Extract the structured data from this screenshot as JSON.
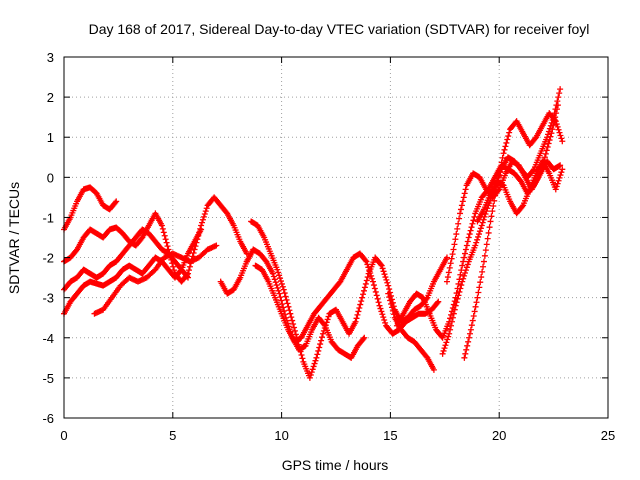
{
  "chart_data": {
    "type": "scatter",
    "title": "Day 168 of 2017, Sidereal Day-to-day VTEC variation (SDTVAR) for receiver foyl",
    "xlabel": "GPS time / hours",
    "ylabel": "SDTVAR / TECUs",
    "xlim": [
      0,
      25
    ],
    "ylim": [
      -6,
      3
    ],
    "x_ticks": [
      0,
      5,
      10,
      15,
      20,
      25
    ],
    "y_ticks": [
      -6,
      -5,
      -4,
      -3,
      -2,
      -1,
      0,
      1,
      2,
      3
    ],
    "grid": true,
    "legend": "none",
    "marker": "plus",
    "color": "#ff0000",
    "series": [
      {
        "points": [
          [
            0,
            -1.3
          ],
          [
            0.3,
            -1.0
          ],
          [
            0.6,
            -0.6
          ],
          [
            0.9,
            -0.3
          ],
          [
            1.2,
            -0.25
          ],
          [
            1.5,
            -0.4
          ],
          [
            1.8,
            -0.7
          ],
          [
            2.1,
            -0.8
          ],
          [
            2.4,
            -0.6
          ]
        ]
      },
      {
        "points": [
          [
            0,
            -2.1
          ],
          [
            0.3,
            -2.0
          ],
          [
            0.6,
            -1.8
          ],
          [
            0.9,
            -1.5
          ],
          [
            1.2,
            -1.3
          ],
          [
            1.5,
            -1.4
          ],
          [
            1.8,
            -1.5
          ],
          [
            2.1,
            -1.3
          ],
          [
            2.4,
            -1.25
          ],
          [
            2.7,
            -1.4
          ],
          [
            3.0,
            -1.6
          ],
          [
            3.3,
            -1.7
          ],
          [
            3.6,
            -1.5
          ],
          [
            3.9,
            -1.2
          ],
          [
            4.2,
            -0.9
          ],
          [
            4.5,
            -1.2
          ],
          [
            4.8,
            -1.8
          ],
          [
            5.1,
            -2.4
          ],
          [
            5.4,
            -2.6
          ],
          [
            5.7,
            -2.4
          ],
          [
            6.0,
            -1.8
          ],
          [
            6.3,
            -1.2
          ],
          [
            6.6,
            -0.7
          ],
          [
            6.9,
            -0.5
          ],
          [
            7.2,
            -0.7
          ],
          [
            7.5,
            -0.9
          ],
          [
            7.8,
            -1.2
          ],
          [
            8.1,
            -1.6
          ],
          [
            8.4,
            -1.9
          ]
        ]
      },
      {
        "points": [
          [
            0,
            -2.8
          ],
          [
            0.3,
            -2.6
          ],
          [
            0.6,
            -2.5
          ],
          [
            0.9,
            -2.3
          ],
          [
            1.2,
            -2.4
          ],
          [
            1.5,
            -2.5
          ],
          [
            1.8,
            -2.4
          ],
          [
            2.1,
            -2.2
          ],
          [
            2.4,
            -2.1
          ],
          [
            2.7,
            -1.9
          ],
          [
            3.0,
            -1.7
          ],
          [
            3.3,
            -1.5
          ],
          [
            3.6,
            -1.3
          ],
          [
            3.9,
            -1.4
          ],
          [
            4.2,
            -1.6
          ],
          [
            4.5,
            -1.8
          ],
          [
            4.8,
            -1.9
          ],
          [
            5.1,
            -2.1
          ],
          [
            5.4,
            -2.3
          ],
          [
            5.7,
            -2.5
          ]
        ]
      },
      {
        "points": [
          [
            0,
            -3.4
          ],
          [
            0.3,
            -3.1
          ],
          [
            0.6,
            -2.9
          ],
          [
            0.9,
            -2.7
          ],
          [
            1.2,
            -2.6
          ],
          [
            1.5,
            -2.65
          ],
          [
            1.8,
            -2.7
          ],
          [
            2.1,
            -2.6
          ],
          [
            2.4,
            -2.5
          ],
          [
            2.7,
            -2.3
          ],
          [
            3.0,
            -2.2
          ],
          [
            3.3,
            -2.3
          ],
          [
            3.6,
            -2.4
          ],
          [
            3.9,
            -2.2
          ],
          [
            4.2,
            -2.0
          ],
          [
            4.5,
            -2.1
          ],
          [
            4.8,
            -2.3
          ],
          [
            5.1,
            -2.5
          ],
          [
            5.4,
            -2.3
          ],
          [
            5.7,
            -1.9
          ],
          [
            6.0,
            -1.6
          ],
          [
            6.3,
            -1.3
          ]
        ]
      },
      {
        "points": [
          [
            1.4,
            -3.4
          ],
          [
            1.8,
            -3.3
          ],
          [
            2.2,
            -3.0
          ],
          [
            2.6,
            -2.7
          ],
          [
            3.0,
            -2.5
          ],
          [
            3.4,
            -2.6
          ],
          [
            3.8,
            -2.5
          ],
          [
            4.2,
            -2.3
          ],
          [
            4.6,
            -2.0
          ],
          [
            5.0,
            -1.9
          ],
          [
            5.4,
            -2.0
          ],
          [
            5.8,
            -2.1
          ],
          [
            6.2,
            -2.0
          ],
          [
            6.6,
            -1.8
          ],
          [
            7.0,
            -1.7
          ]
        ]
      },
      {
        "points": [
          [
            7.2,
            -2.6
          ],
          [
            7.5,
            -2.9
          ],
          [
            7.8,
            -2.8
          ],
          [
            8.1,
            -2.5
          ],
          [
            8.4,
            -2.1
          ],
          [
            8.7,
            -1.8
          ]
        ]
      },
      {
        "points": [
          [
            8.6,
            -1.1
          ],
          [
            8.9,
            -1.2
          ],
          [
            9.2,
            -1.5
          ],
          [
            9.5,
            -1.9
          ],
          [
            9.8,
            -2.3
          ],
          [
            10.1,
            -2.8
          ],
          [
            10.4,
            -3.4
          ],
          [
            10.7,
            -4.0
          ],
          [
            11.0,
            -4.6
          ],
          [
            11.3,
            -5.0
          ],
          [
            11.6,
            -4.5
          ],
          [
            11.9,
            -3.9
          ],
          [
            12.2,
            -3.4
          ],
          [
            12.5,
            -3.3
          ],
          [
            12.8,
            -3.6
          ],
          [
            13.1,
            -3.9
          ],
          [
            13.4,
            -3.6
          ],
          [
            13.7,
            -3.0
          ],
          [
            14.0,
            -2.4
          ],
          [
            14.3,
            -2.0
          ],
          [
            14.6,
            -2.2
          ],
          [
            14.9,
            -2.7
          ],
          [
            15.2,
            -3.3
          ],
          [
            15.5,
            -3.6
          ],
          [
            15.8,
            -3.5
          ],
          [
            16.1,
            -3.3
          ],
          [
            16.4,
            -3.2
          ],
          [
            16.7,
            -3.0
          ],
          [
            17.0,
            -2.6
          ],
          [
            17.3,
            -2.3
          ],
          [
            17.6,
            -2.0
          ]
        ]
      },
      {
        "points": [
          [
            8.4,
            -2.1
          ],
          [
            8.7,
            -1.8
          ],
          [
            9.0,
            -1.9
          ],
          [
            9.3,
            -2.1
          ],
          [
            9.6,
            -2.4
          ],
          [
            9.9,
            -2.9
          ],
          [
            10.2,
            -3.5
          ],
          [
            10.5,
            -4.0
          ],
          [
            10.8,
            -4.3
          ],
          [
            11.1,
            -4.2
          ],
          [
            11.4,
            -3.8
          ],
          [
            11.7,
            -3.5
          ],
          [
            12.0,
            -3.7
          ],
          [
            12.3,
            -4.1
          ],
          [
            12.6,
            -4.3
          ],
          [
            12.9,
            -4.4
          ],
          [
            13.2,
            -4.5
          ],
          [
            13.5,
            -4.2
          ],
          [
            13.8,
            -4.0
          ]
        ]
      },
      {
        "points": [
          [
            8.8,
            -2.2
          ],
          [
            9.1,
            -2.3
          ],
          [
            9.4,
            -2.6
          ],
          [
            9.7,
            -3.0
          ],
          [
            10.0,
            -3.4
          ],
          [
            10.3,
            -3.8
          ],
          [
            10.6,
            -4.1
          ],
          [
            10.9,
            -4.0
          ],
          [
            11.2,
            -3.7
          ],
          [
            11.5,
            -3.4
          ],
          [
            11.8,
            -3.2
          ],
          [
            12.1,
            -3.0
          ],
          [
            12.4,
            -2.8
          ],
          [
            12.7,
            -2.6
          ],
          [
            13.0,
            -2.3
          ],
          [
            13.3,
            -2.0
          ],
          [
            13.6,
            -1.9
          ],
          [
            13.9,
            -2.1
          ],
          [
            14.2,
            -2.6
          ],
          [
            14.5,
            -3.2
          ],
          [
            14.8,
            -3.7
          ],
          [
            15.1,
            -3.9
          ],
          [
            15.4,
            -3.8
          ],
          [
            15.7,
            -3.6
          ],
          [
            16.0,
            -3.5
          ],
          [
            16.3,
            -3.4
          ],
          [
            16.6,
            -3.4
          ],
          [
            16.9,
            -3.3
          ],
          [
            17.2,
            -3.1
          ]
        ]
      },
      {
        "points": [
          [
            14.9,
            -2.9
          ],
          [
            15.2,
            -3.5
          ],
          [
            15.5,
            -3.8
          ],
          [
            15.8,
            -4.0
          ],
          [
            16.1,
            -4.1
          ],
          [
            16.4,
            -4.3
          ],
          [
            16.7,
            -4.5
          ],
          [
            17.0,
            -4.8
          ]
        ]
      },
      {
        "points": [
          [
            15.3,
            -3.7
          ],
          [
            15.6,
            -3.4
          ],
          [
            15.9,
            -3.1
          ],
          [
            16.2,
            -2.9
          ],
          [
            16.5,
            -3.0
          ],
          [
            16.8,
            -3.4
          ],
          [
            17.1,
            -3.8
          ],
          [
            17.4,
            -4.0
          ],
          [
            17.7,
            -3.6
          ],
          [
            18.0,
            -3.0
          ],
          [
            18.3,
            -2.2
          ],
          [
            18.6,
            -1.5
          ],
          [
            18.9,
            -0.9
          ],
          [
            19.2,
            -0.5
          ],
          [
            19.5,
            -0.3
          ],
          [
            19.8,
            0.0
          ],
          [
            20.1,
            0.3
          ],
          [
            20.4,
            0.2
          ],
          [
            20.7,
            0.1
          ],
          [
            21.0,
            -0.1
          ],
          [
            21.3,
            -0.4
          ],
          [
            21.6,
            -0.2
          ],
          [
            21.9,
            0.1
          ],
          [
            22.2,
            0.4
          ],
          [
            22.5,
            0.2
          ],
          [
            22.8,
            0.3
          ]
        ]
      },
      {
        "points": [
          [
            17.4,
            -4.4
          ],
          [
            17.7,
            -3.9
          ],
          [
            18.0,
            -3.2
          ],
          [
            18.3,
            -2.6
          ],
          [
            18.6,
            -2.1
          ],
          [
            18.9,
            -1.7
          ],
          [
            19.2,
            -1.2
          ],
          [
            19.5,
            -0.7
          ],
          [
            19.8,
            -0.3
          ],
          [
            20.1,
            0.2
          ],
          [
            20.4,
            0.5
          ],
          [
            20.7,
            0.4
          ],
          [
            21.0,
            0.2
          ],
          [
            21.3,
            0.0
          ],
          [
            21.6,
            0.2
          ],
          [
            21.9,
            0.6
          ],
          [
            22.2,
            1.0
          ],
          [
            22.5,
            1.5
          ],
          [
            22.8,
            2.2
          ]
        ]
      },
      {
        "points": [
          [
            17.6,
            -2.6
          ],
          [
            17.9,
            -1.8
          ],
          [
            18.2,
            -0.9
          ],
          [
            18.5,
            -0.2
          ],
          [
            18.8,
            0.1
          ],
          [
            19.1,
            0.0
          ],
          [
            19.4,
            -0.3
          ],
          [
            19.7,
            -0.5
          ],
          [
            20.0,
            -0.3
          ],
          [
            20.3,
            0.1
          ],
          [
            20.6,
            0.4
          ],
          [
            20.9,
            0.3
          ],
          [
            21.2,
            0.0
          ],
          [
            21.5,
            -0.3
          ],
          [
            21.8,
            0.0
          ],
          [
            22.1,
            0.5
          ],
          [
            22.4,
            1.1
          ],
          [
            22.7,
            1.8
          ]
        ]
      },
      {
        "points": [
          [
            18.4,
            -4.5
          ],
          [
            18.7,
            -3.8
          ],
          [
            19.0,
            -3.0
          ],
          [
            19.3,
            -2.1
          ],
          [
            19.6,
            -1.1
          ],
          [
            19.9,
            -0.2
          ],
          [
            20.2,
            0.6
          ],
          [
            20.5,
            1.2
          ],
          [
            20.8,
            1.4
          ],
          [
            21.1,
            1.1
          ],
          [
            21.4,
            0.8
          ],
          [
            21.7,
            1.0
          ],
          [
            22.0,
            1.3
          ],
          [
            22.3,
            1.6
          ],
          [
            22.6,
            1.4
          ],
          [
            22.9,
            0.9
          ]
        ]
      },
      {
        "points": [
          [
            19.0,
            -1.1
          ],
          [
            19.3,
            -0.8
          ],
          [
            19.6,
            -0.4
          ],
          [
            19.9,
            -0.1
          ],
          [
            20.2,
            -0.2
          ],
          [
            20.5,
            -0.6
          ],
          [
            20.8,
            -0.9
          ],
          [
            21.1,
            -0.7
          ],
          [
            21.4,
            -0.3
          ],
          [
            21.7,
            0.1
          ],
          [
            22.0,
            0.4
          ],
          [
            22.3,
            0.1
          ],
          [
            22.6,
            -0.3
          ],
          [
            22.9,
            0.2
          ]
        ]
      }
    ]
  }
}
